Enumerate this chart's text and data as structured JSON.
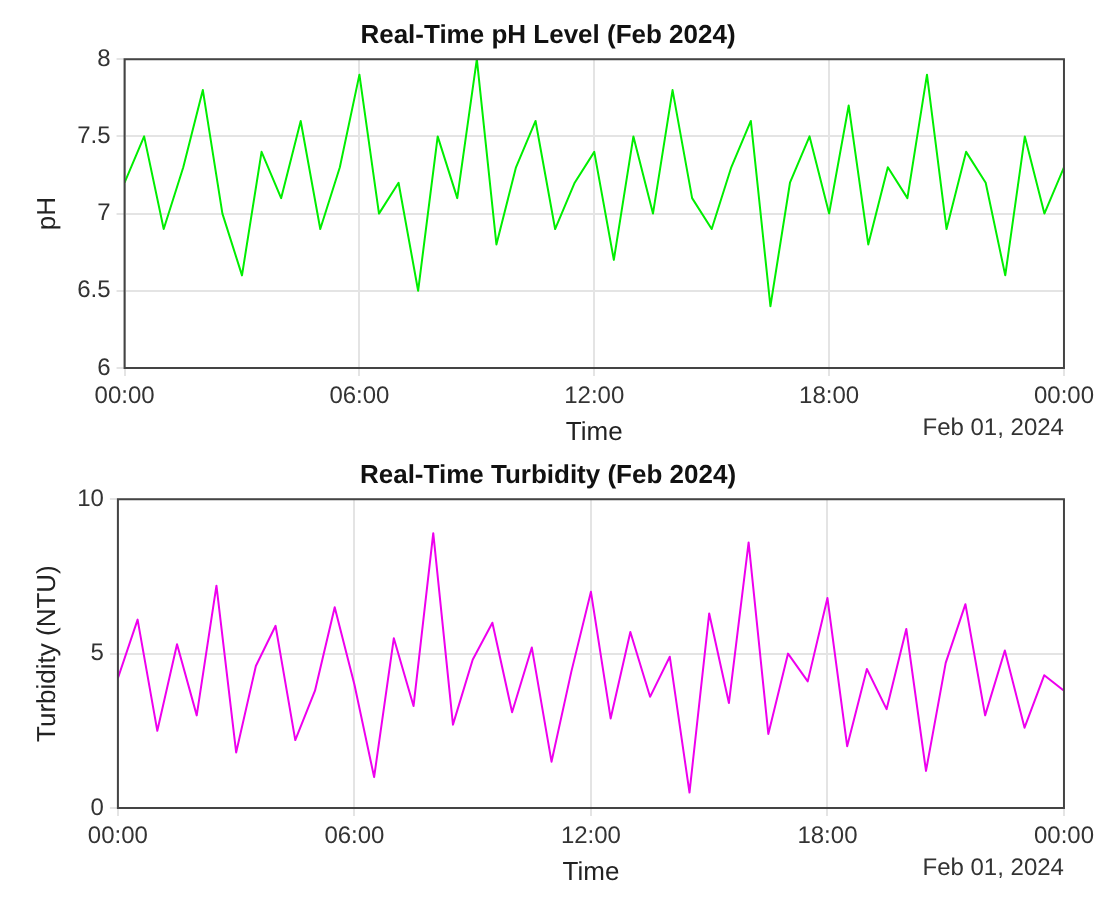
{
  "chart_data": [
    {
      "type": "line",
      "title": "Real-Time pH Level (Feb 2024)",
      "xlabel": "Time",
      "ylabel": "pH",
      "annotations": [
        "Feb 01, 2024"
      ],
      "grid": true,
      "legend": false,
      "marker": "none",
      "xlim": [
        0,
        24
      ],
      "xticks": [
        {
          "value": 0,
          "label": "00:00"
        },
        {
          "value": 6,
          "label": "06:00"
        },
        {
          "value": 12,
          "label": "12:00"
        },
        {
          "value": 18,
          "label": "18:00"
        },
        {
          "value": 24,
          "label": "00:00"
        }
      ],
      "ylim": [
        6,
        8
      ],
      "yticks": [
        6,
        6.5,
        7,
        7.5,
        8
      ],
      "x": [
        0,
        0.5,
        1,
        1.5,
        2,
        2.5,
        3,
        3.5,
        4,
        4.5,
        5,
        5.5,
        6,
        6.5,
        7,
        7.5,
        8,
        8.5,
        9,
        9.5,
        10,
        10.5,
        11,
        11.5,
        12,
        12.5,
        13,
        13.5,
        14,
        14.5,
        15,
        15.5,
        16,
        16.5,
        17,
        17.5,
        18,
        18.5,
        19,
        19.5,
        20,
        20.5,
        21,
        21.5,
        22,
        22.5,
        23,
        23.5,
        24
      ],
      "series": [
        {
          "color": "#00ee00",
          "values": [
            7.2,
            7.5,
            6.9,
            7.3,
            7.8,
            7.0,
            6.6,
            7.4,
            7.1,
            7.6,
            6.9,
            7.3,
            7.9,
            7.0,
            7.2,
            6.5,
            7.5,
            7.1,
            8.0,
            6.8,
            7.3,
            7.6,
            6.9,
            7.2,
            7.4,
            6.7,
            7.5,
            7.0,
            7.8,
            7.1,
            6.9,
            7.3,
            7.6,
            6.4,
            7.2,
            7.5,
            7.0,
            7.7,
            6.8,
            7.3,
            7.1,
            7.9,
            6.9,
            7.4,
            7.2,
            6.6,
            7.5,
            7.0,
            7.3
          ]
        }
      ]
    },
    {
      "type": "line",
      "title": "Real-Time Turbidity (Feb 2024)",
      "xlabel": "Time",
      "ylabel": "Turbidity (NTU)",
      "annotations": [
        "Feb 01, 2024"
      ],
      "grid": true,
      "legend": false,
      "marker": "none",
      "xlim": [
        0,
        24
      ],
      "xticks": [
        {
          "value": 0,
          "label": "00:00"
        },
        {
          "value": 6,
          "label": "06:00"
        },
        {
          "value": 12,
          "label": "12:00"
        },
        {
          "value": 18,
          "label": "18:00"
        },
        {
          "value": 24,
          "label": "00:00"
        }
      ],
      "ylim": [
        0,
        10
      ],
      "yticks": [
        0,
        5,
        10
      ],
      "x": [
        0,
        0.5,
        1,
        1.5,
        2,
        2.5,
        3,
        3.5,
        4,
        4.5,
        5,
        5.5,
        6,
        6.5,
        7,
        7.5,
        8,
        8.5,
        9,
        9.5,
        10,
        10.5,
        11,
        11.5,
        12,
        12.5,
        13,
        13.5,
        14,
        14.5,
        15,
        15.5,
        16,
        16.5,
        17,
        17.5,
        18,
        18.5,
        19,
        19.5,
        20,
        20.5,
        21,
        21.5,
        22,
        22.5,
        23,
        23.5,
        24
      ],
      "series": [
        {
          "color": "#ee00ee",
          "values": [
            4.2,
            6.1,
            2.5,
            5.3,
            3.0,
            7.2,
            1.8,
            4.6,
            5.9,
            2.2,
            3.8,
            6.5,
            4.0,
            1.0,
            5.5,
            3.3,
            8.9,
            2.7,
            4.8,
            6.0,
            3.1,
            5.2,
            1.5,
            4.4,
            7.0,
            2.9,
            5.7,
            3.6,
            4.9,
            0.5,
            6.3,
            3.4,
            8.6,
            2.4,
            5.0,
            4.1,
            6.8,
            2.0,
            4.5,
            3.2,
            5.8,
            1.2,
            4.7,
            6.6,
            3.0,
            5.1,
            2.6,
            4.3,
            3.8
          ]
        }
      ]
    }
  ]
}
